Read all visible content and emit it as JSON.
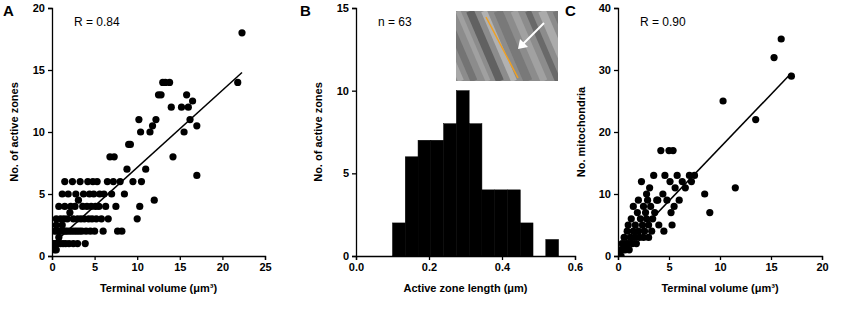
{
  "chart_data": [
    {
      "type": "scatter",
      "title": "A",
      "annotations": [
        "R = 0.84"
      ],
      "x_label": "Terminal volume (μm³)",
      "y_label": "No. of active zones",
      "xlim": [
        0,
        25
      ],
      "xticks": [
        0,
        5,
        10,
        15,
        20,
        25
      ],
      "ylim": [
        0,
        20
      ],
      "yticks": [
        0,
        5,
        10,
        15,
        20
      ],
      "series": [
        {
          "type": "scatter",
          "color": "#000000",
          "x": [
            0.2,
            0.3,
            0.3,
            0.4,
            0.5,
            0.5,
            0.5,
            0.6,
            0.7,
            0.8,
            0.8,
            0.9,
            1.0,
            1.0,
            1.1,
            1.2,
            1.2,
            1.3,
            1.4,
            1.5,
            1.5,
            1.5,
            1.6,
            1.7,
            1.8,
            1.9,
            2.0,
            2.0,
            2.1,
            2.2,
            2.3,
            2.4,
            2.5,
            2.5,
            2.6,
            2.7,
            2.8,
            2.9,
            3.0,
            3.0,
            3.1,
            3.2,
            3.3,
            3.4,
            3.5,
            3.6,
            3.7,
            3.8,
            3.9,
            4.0,
            4.1,
            4.2,
            4.3,
            4.4,
            4.5,
            4.6,
            4.7,
            4.8,
            4.9,
            5.0,
            5.1,
            5.2,
            5.3,
            5.5,
            5.6,
            5.8,
            6.0,
            6.1,
            6.3,
            6.5,
            6.6,
            6.8,
            7.0,
            7.2,
            7.3,
            7.5,
            7.7,
            8.0,
            8.2,
            8.5,
            8.8,
            9.0,
            9.2,
            9.5,
            10.0,
            10.2,
            10.3,
            10.4,
            10.5,
            11.0,
            11.5,
            11.8,
            12.0,
            12.2,
            12.5,
            12.8,
            13.0,
            13.3,
            13.8,
            14.0,
            14.2,
            15.2,
            15.5,
            15.8,
            16.0,
            16.2,
            16.5,
            17.0,
            17.0,
            21.8,
            22.3
          ],
          "values": [
            1,
            2,
            0.5,
            1,
            0.5,
            3,
            2.5,
            2,
            1,
            1.5,
            4,
            2,
            1,
            3,
            2,
            2.5,
            5,
            1,
            3,
            2,
            4,
            6,
            1,
            2,
            3,
            5,
            1,
            2,
            3.5,
            4,
            2,
            6,
            1,
            3,
            2,
            4,
            5,
            2,
            1,
            3,
            4.5,
            2,
            6,
            3,
            2,
            4,
            5,
            3,
            1,
            2,
            4,
            6,
            3,
            5,
            2,
            4,
            3,
            6,
            5,
            2,
            4,
            3,
            6,
            4,
            5,
            3,
            2,
            5,
            4,
            6,
            3,
            8,
            5,
            6,
            8,
            4,
            2,
            6,
            2,
            5,
            7,
            9,
            9,
            6,
            3,
            11,
            4,
            10,
            6,
            7,
            10,
            10.5,
            4.5,
            11,
            13,
            13,
            14,
            14,
            14,
            12,
            8,
            12,
            10,
            13,
            12,
            11,
            12.5,
            6.5,
            10.5,
            14,
            18
          ]
        },
        {
          "type": "line",
          "color": "#000000",
          "x": [
            0.3,
            22.3
          ],
          "values": [
            1.1,
            14.8
          ]
        }
      ]
    },
    {
      "type": "histogram",
      "title": "B",
      "annotations": [
        "n = 63"
      ],
      "x_label": "Active zone length (μm)",
      "y_label": "No. of active zones",
      "xlim": [
        0,
        0.6
      ],
      "xticks": [
        {
          "value": 0,
          "label": "0.0"
        },
        {
          "value": 0.2,
          "label": "0.2"
        },
        {
          "value": 0.4,
          "label": "0.4"
        },
        {
          "value": 0.6,
          "label": "0.6"
        }
      ],
      "ylim": [
        0,
        15
      ],
      "yticks": [
        0,
        5,
        10,
        15
      ],
      "bins": [
        0.1,
        0.135,
        0.17,
        0.205,
        0.24,
        0.275,
        0.31,
        0.345,
        0.38,
        0.415,
        0.45,
        0.485,
        0.52,
        0.555
      ],
      "values": [
        2,
        6,
        7,
        7,
        8,
        10,
        8,
        4,
        4,
        4,
        2,
        0,
        1
      ],
      "color": "#000000"
    },
    {
      "type": "scatter",
      "title": "C",
      "annotations": [
        "R = 0.90"
      ],
      "x_label": "Terminal volume (μm³)",
      "y_label": "No. mitochondria",
      "xlim": [
        0,
        20
      ],
      "xticks": [
        0,
        5,
        10,
        15,
        20
      ],
      "ylim": [
        0,
        40
      ],
      "yticks": [
        0,
        10,
        20,
        30,
        40
      ],
      "series": [
        {
          "type": "scatter",
          "color": "#000000",
          "x": [
            0.1,
            0.2,
            0.3,
            0.4,
            0.5,
            0.6,
            0.7,
            0.8,
            0.9,
            1.0,
            1.0,
            1.1,
            1.2,
            1.3,
            1.4,
            1.5,
            1.5,
            1.6,
            1.7,
            1.8,
            1.9,
            2.0,
            2.0,
            2.1,
            2.2,
            2.3,
            2.4,
            2.5,
            2.5,
            2.6,
            2.7,
            2.8,
            2.8,
            2.9,
            3.0,
            3.0,
            3.1,
            3.2,
            3.3,
            3.4,
            3.5,
            3.6,
            3.8,
            3.9,
            4.0,
            4.2,
            4.4,
            4.5,
            4.6,
            4.8,
            5.0,
            5.1,
            5.2,
            5.3,
            5.4,
            5.5,
            5.6,
            5.8,
            6.0,
            6.3,
            6.6,
            7.0,
            7.2,
            7.5,
            8.5,
            9.0,
            10.3,
            11.5,
            13.5,
            15.3,
            16.0,
            17.0
          ],
          "values": [
            0,
            1,
            0,
            2,
            1,
            3,
            1,
            2,
            4,
            2,
            5,
            1,
            3,
            6,
            2,
            4,
            8,
            3,
            5,
            2,
            7,
            4,
            9,
            3,
            6,
            12,
            5,
            3,
            8,
            4,
            7,
            6,
            10,
            9,
            3,
            5,
            11,
            8,
            4,
            6,
            13,
            7,
            9,
            9,
            5,
            17,
            10,
            4,
            13,
            9,
            17,
            12,
            7,
            5,
            17,
            8,
            11,
            13,
            9,
            12,
            11,
            13,
            12,
            13,
            10,
            7,
            25,
            11,
            22,
            32,
            35,
            29
          ]
        },
        {
          "type": "line",
          "color": "#000000",
          "x": [
            0,
            17
          ],
          "values": [
            0.3,
            29.5
          ]
        }
      ]
    }
  ]
}
